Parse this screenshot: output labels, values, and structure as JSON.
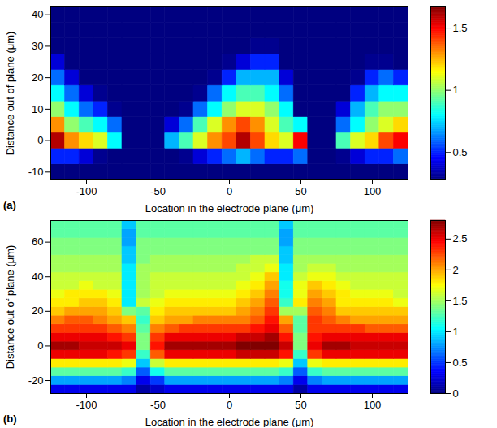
{
  "chart_data": [
    {
      "type": "heatmap",
      "panel_label": "(a)",
      "x_label": "Location in the electrode plane (μm)",
      "y_label": "Distance out of plane (μm)",
      "xlim": [
        -125,
        125
      ],
      "xticks": [
        -100,
        -50,
        0,
        50,
        100
      ],
      "ylim": [
        -12.5,
        42.5
      ],
      "yticks": [
        -10,
        0,
        10,
        20,
        30,
        40
      ],
      "x": [
        -120,
        -110,
        -100,
        -90,
        -80,
        -70,
        -60,
        -50,
        -40,
        -30,
        -20,
        -10,
        0,
        10,
        20,
        30,
        40,
        50,
        60,
        70,
        80,
        90,
        100,
        110,
        120
      ],
      "y": [
        -10,
        -5,
        0,
        5,
        10,
        15,
        20,
        25,
        30,
        35,
        40
      ],
      "values": [
        [
          0,
          0,
          0,
          0,
          0,
          0,
          0,
          0,
          0,
          0,
          0,
          0,
          0,
          0,
          0,
          0,
          0,
          0,
          0,
          0,
          0,
          0,
          0,
          0,
          0
        ],
        [
          0.5,
          0.5,
          0.4,
          0.3,
          0.2,
          0,
          0,
          0,
          0.2,
          0.3,
          0.4,
          0.5,
          0.6,
          0.7,
          0.6,
          0.5,
          0.5,
          0.6,
          0,
          0,
          0.3,
          0.4,
          0.5,
          0.5,
          0.6
        ],
        [
          1.6,
          1.3,
          1.2,
          1.1,
          0.8,
          0,
          0,
          0,
          0.7,
          0.9,
          1.1,
          1.3,
          1.4,
          1.6,
          1.4,
          1.2,
          1.1,
          1.5,
          0,
          0,
          0.9,
          1.1,
          1.2,
          1.4,
          1.5
        ],
        [
          1.3,
          1.0,
          0.9,
          0.8,
          0.6,
          0,
          0,
          0,
          0.4,
          0.6,
          0.9,
          1.1,
          1.3,
          1.4,
          1.3,
          1.1,
          0.9,
          0.8,
          0,
          0,
          0.6,
          0.8,
          1.0,
          1.1,
          1.2
        ],
        [
          1.0,
          0.8,
          0.6,
          0.5,
          0.3,
          0,
          0,
          0,
          0.1,
          0.3,
          0.6,
          0.8,
          1.0,
          1.1,
          1.1,
          1.0,
          0.8,
          0.2,
          0,
          0,
          0.4,
          0.7,
          0.9,
          1.0,
          1.0
        ],
        [
          0.8,
          0.6,
          0.4,
          0.3,
          0.1,
          0,
          0,
          0,
          0,
          0.1,
          0.3,
          0.6,
          0.8,
          0.9,
          0.9,
          0.8,
          0.6,
          0,
          0,
          0,
          0.2,
          0.5,
          0.7,
          0.8,
          0.8
        ],
        [
          0.6,
          0.4,
          0.2,
          0.1,
          0,
          0,
          0,
          0,
          0,
          0,
          0.1,
          0.3,
          0.5,
          0.7,
          0.7,
          0.7,
          0.4,
          0,
          0,
          0,
          0.1,
          0.3,
          0.5,
          0.6,
          0.5
        ],
        [
          0.4,
          0.2,
          0.1,
          0,
          0,
          0,
          0,
          0,
          0,
          0,
          0,
          0.1,
          0.3,
          0.4,
          0.5,
          0.5,
          0.2,
          0,
          0,
          0,
          0,
          0.1,
          0.3,
          0.3,
          0.2
        ],
        [
          0.1,
          0,
          0,
          0,
          0,
          0,
          0,
          0,
          0,
          0,
          0,
          0,
          0.1,
          0.2,
          0.3,
          0.3,
          0.05,
          0,
          0,
          0,
          0,
          0,
          0.05,
          0.05,
          0
        ],
        [
          0,
          0,
          0,
          0,
          0,
          0,
          0,
          0,
          0,
          0,
          0,
          0,
          0,
          0.05,
          0.15,
          0.15,
          0,
          0,
          0,
          0,
          0,
          0,
          0,
          0,
          0
        ],
        [
          0,
          0,
          0,
          0,
          0,
          0,
          0,
          0,
          0,
          0,
          0,
          0,
          0,
          0,
          0,
          0,
          0,
          0,
          0,
          0,
          0,
          0,
          0,
          0,
          0
        ]
      ],
      "colorbar": {
        "range": [
          0.28,
          1.67
        ],
        "ticks": [
          0.5,
          1,
          1.5
        ]
      }
    },
    {
      "type": "heatmap",
      "panel_label": "(b)",
      "x_label": "Location in the electrode plane (μm)",
      "y_label": "Distance out of plane (μm)",
      "xlim": [
        -125,
        125
      ],
      "xticks": [
        -100,
        -50,
        0,
        50,
        100
      ],
      "ylim": [
        -27.5,
        72.5
      ],
      "yticks": [
        -20,
        0,
        20,
        40,
        60
      ],
      "x": [
        -120,
        -110,
        -100,
        -90,
        -80,
        -70,
        -60,
        -50,
        -40,
        -30,
        -20,
        -10,
        0,
        10,
        20,
        30,
        40,
        50,
        60,
        70,
        80,
        90,
        100,
        110,
        120
      ],
      "y": [
        -25,
        -20,
        -15,
        -10,
        -5,
        0,
        5,
        10,
        15,
        20,
        25,
        30,
        35,
        40,
        45,
        50,
        55,
        60,
        65,
        70
      ],
      "values": [
        [
          0.3,
          0.3,
          0.3,
          0.3,
          0.3,
          0.3,
          0.1,
          0.2,
          0.3,
          0.3,
          0.3,
          0.3,
          0.3,
          0.3,
          0.3,
          0.3,
          0.3,
          0.1,
          0.3,
          0.3,
          0.3,
          0.3,
          0.3,
          0.3,
          0.3
        ],
        [
          0.8,
          0.8,
          0.8,
          0.8,
          0.8,
          0.7,
          0.3,
          0.5,
          0.8,
          0.8,
          0.8,
          0.8,
          0.8,
          0.8,
          0.8,
          0.8,
          0.7,
          0.3,
          0.7,
          0.8,
          0.8,
          0.8,
          0.8,
          0.8,
          0.8
        ],
        [
          1.3,
          1.3,
          1.3,
          1.3,
          1.3,
          1.2,
          0.6,
          1.1,
          1.3,
          1.3,
          1.3,
          1.3,
          1.3,
          1.3,
          1.3,
          1.3,
          1.2,
          0.6,
          1.2,
          1.3,
          1.3,
          1.3,
          1.3,
          1.3,
          1.3
        ],
        [
          1.8,
          1.8,
          1.8,
          1.8,
          1.8,
          1.7,
          0.9,
          1.6,
          1.8,
          1.8,
          1.8,
          1.8,
          1.8,
          1.8,
          1.8,
          1.8,
          1.7,
          0.9,
          1.7,
          1.8,
          1.8,
          1.8,
          1.8,
          1.8,
          1.8
        ],
        [
          2.5,
          2.5,
          2.5,
          2.5,
          2.4,
          2.3,
          1.2,
          2.2,
          2.5,
          2.5,
          2.5,
          2.5,
          2.5,
          2.6,
          2.6,
          2.6,
          2.4,
          1.2,
          2.3,
          2.5,
          2.5,
          2.5,
          2.5,
          2.5,
          2.5
        ],
        [
          2.7,
          2.7,
          2.6,
          2.6,
          2.6,
          2.5,
          1.4,
          2.4,
          2.7,
          2.7,
          2.7,
          2.7,
          2.7,
          2.8,
          2.8,
          2.8,
          2.6,
          1.4,
          2.5,
          2.7,
          2.7,
          2.6,
          2.6,
          2.6,
          2.6
        ],
        [
          2.5,
          2.5,
          2.5,
          2.5,
          2.4,
          2.3,
          1.4,
          2.3,
          2.5,
          2.5,
          2.5,
          2.5,
          2.5,
          2.6,
          2.6,
          2.7,
          2.4,
          1.4,
          2.4,
          2.5,
          2.5,
          2.5,
          2.5,
          2.5,
          2.5
        ],
        [
          2.3,
          2.3,
          2.3,
          2.3,
          2.2,
          2.1,
          1.3,
          2.1,
          2.2,
          2.3,
          2.3,
          2.3,
          2.3,
          2.3,
          2.4,
          2.5,
          2.2,
          1.3,
          2.3,
          2.3,
          2.3,
          2.3,
          2.2,
          2.2,
          2.2
        ],
        [
          2.1,
          2.2,
          2.2,
          2.1,
          2.0,
          1.9,
          1.2,
          1.9,
          2.0,
          2.0,
          2.1,
          2.1,
          2.1,
          2.1,
          2.2,
          2.4,
          2.0,
          1.3,
          2.3,
          2.2,
          2.1,
          2.0,
          2.0,
          2.0,
          2.0
        ],
        [
          1.9,
          2.0,
          2.0,
          2.0,
          1.9,
          1.4,
          1.3,
          1.8,
          1.9,
          1.9,
          1.9,
          1.9,
          1.9,
          2.0,
          2.1,
          2.3,
          1.5,
          1.5,
          2.2,
          2.1,
          1.9,
          1.9,
          1.9,
          1.9,
          1.9
        ],
        [
          1.8,
          1.8,
          1.9,
          1.9,
          1.8,
          1.0,
          1.6,
          1.7,
          1.8,
          1.8,
          1.8,
          1.8,
          1.8,
          1.9,
          2.0,
          2.2,
          1.2,
          1.8,
          2.1,
          2.0,
          1.8,
          1.8,
          1.8,
          1.8,
          1.7
        ],
        [
          1.7,
          1.8,
          1.8,
          1.8,
          1.7,
          1.0,
          1.5,
          1.6,
          1.7,
          1.7,
          1.7,
          1.7,
          1.7,
          1.8,
          1.9,
          2.1,
          1.1,
          1.7,
          2.0,
          1.9,
          1.8,
          1.7,
          1.7,
          1.7,
          1.6
        ],
        [
          1.6,
          1.6,
          1.7,
          1.6,
          1.6,
          1.0,
          1.5,
          1.6,
          1.6,
          1.6,
          1.6,
          1.6,
          1.6,
          1.7,
          1.8,
          2.0,
          1.1,
          1.7,
          1.9,
          1.8,
          1.7,
          1.6,
          1.6,
          1.6,
          1.6
        ],
        [
          1.6,
          1.6,
          1.6,
          1.6,
          1.6,
          1.0,
          1.5,
          1.6,
          1.6,
          1.6,
          1.6,
          1.6,
          1.6,
          1.6,
          1.7,
          1.9,
          1.0,
          1.6,
          1.7,
          1.7,
          1.6,
          1.6,
          1.6,
          1.6,
          1.6
        ],
        [
          1.5,
          1.5,
          1.5,
          1.5,
          1.5,
          1.0,
          1.5,
          1.5,
          1.5,
          1.5,
          1.5,
          1.5,
          1.5,
          1.6,
          1.6,
          1.7,
          1.0,
          1.5,
          1.6,
          1.6,
          1.5,
          1.5,
          1.5,
          1.5,
          1.5
        ],
        [
          1.5,
          1.5,
          1.5,
          1.5,
          1.5,
          0.9,
          1.4,
          1.5,
          1.5,
          1.5,
          1.5,
          1.5,
          1.5,
          1.5,
          1.6,
          1.6,
          0.9,
          1.5,
          1.5,
          1.5,
          1.5,
          1.5,
          1.5,
          1.5,
          1.5
        ],
        [
          1.4,
          1.4,
          1.4,
          1.4,
          1.4,
          0.9,
          1.4,
          1.4,
          1.4,
          1.4,
          1.4,
          1.4,
          1.4,
          1.4,
          1.4,
          1.4,
          0.9,
          1.4,
          1.4,
          1.4,
          1.4,
          1.4,
          1.4,
          1.4,
          1.4
        ],
        [
          1.4,
          1.4,
          1.4,
          1.4,
          1.4,
          0.8,
          1.4,
          1.4,
          1.4,
          1.4,
          1.4,
          1.4,
          1.4,
          1.4,
          1.4,
          1.4,
          0.8,
          1.4,
          1.4,
          1.4,
          1.4,
          1.4,
          1.4,
          1.4,
          1.4
        ],
        [
          1.3,
          1.3,
          1.3,
          1.3,
          1.3,
          0.8,
          1.3,
          1.3,
          1.3,
          1.3,
          1.3,
          1.3,
          1.3,
          1.3,
          1.3,
          1.3,
          0.8,
          1.3,
          1.3,
          1.3,
          1.3,
          1.3,
          1.3,
          1.3,
          1.3
        ],
        [
          1.3,
          1.3,
          1.3,
          1.3,
          1.3,
          0.9,
          1.3,
          1.3,
          1.3,
          1.3,
          1.3,
          1.3,
          1.3,
          1.3,
          1.3,
          1.3,
          0.9,
          1.3,
          1.3,
          1.3,
          1.3,
          1.3,
          1.3,
          1.3,
          1.3
        ]
      ],
      "colorbar": {
        "range": [
          0,
          2.8
        ],
        "ticks": [
          0,
          0.5,
          1,
          1.5,
          2,
          2.5
        ]
      }
    }
  ]
}
